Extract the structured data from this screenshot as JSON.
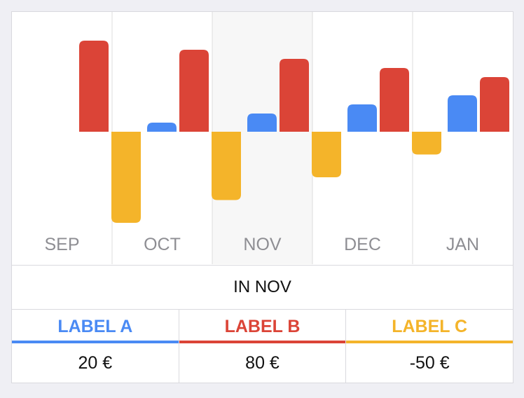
{
  "chart_data": {
    "type": "bar",
    "categories": [
      "SEP",
      "OCT",
      "NOV",
      "DEC",
      "JAN"
    ],
    "series": [
      {
        "name": "LABEL A",
        "color": "#4a8af4",
        "values": [
          0,
          10,
          20,
          30,
          40
        ]
      },
      {
        "name": "LABEL B",
        "color": "#db4437",
        "values": [
          100,
          90,
          80,
          70,
          60
        ]
      },
      {
        "name": "LABEL C",
        "color": "#f4b42a",
        "values": [
          -100,
          -75,
          -50,
          -25,
          0
        ]
      }
    ],
    "selected_category": "NOV",
    "ylim": [
      -100,
      100
    ],
    "grid": false
  },
  "caption": "IN NOV",
  "legend": [
    {
      "label": "LABEL A",
      "value": "20 €",
      "color": "#4a8af4"
    },
    {
      "label": "LABEL B",
      "value": "80 €",
      "color": "#db4437"
    },
    {
      "label": "LABEL C",
      "value": "-50 €",
      "color": "#f4b42a"
    }
  ]
}
